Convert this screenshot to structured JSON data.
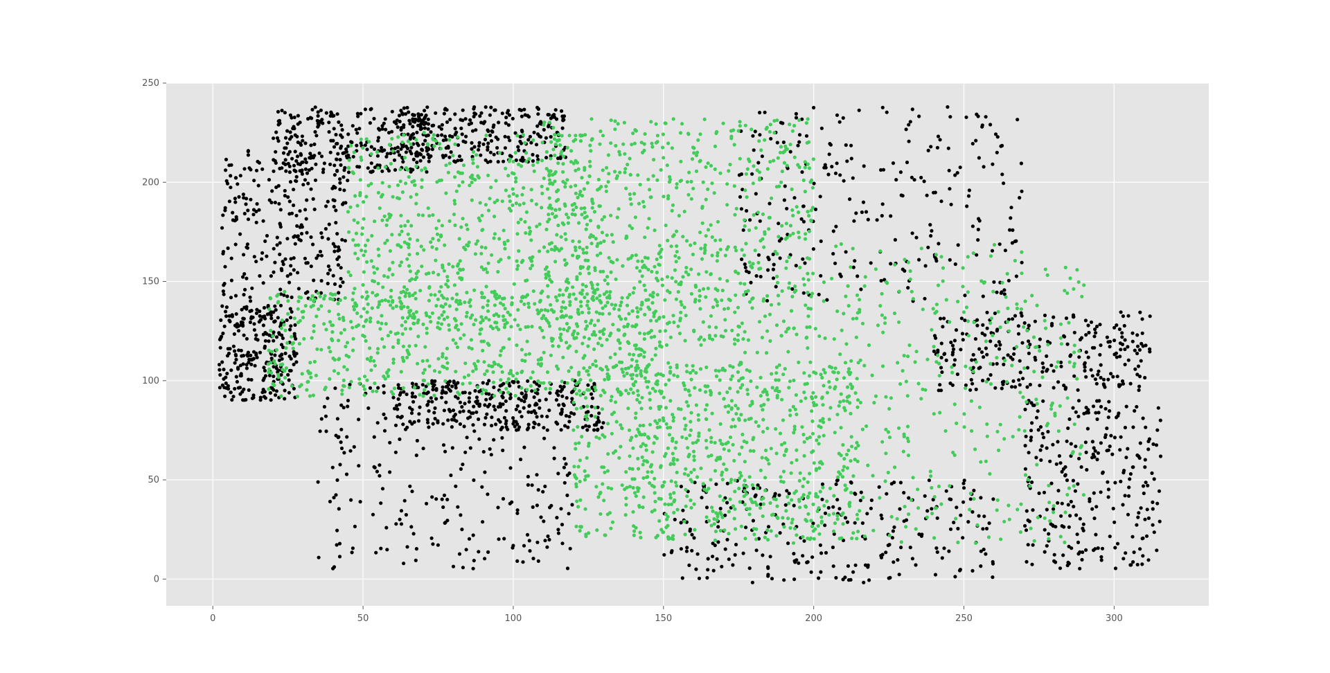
{
  "chart_data": {
    "type": "scatter",
    "title": "",
    "xlabel": "",
    "ylabel": "",
    "xlim": [
      -15.5,
      331.5
    ],
    "ylim": [
      -13.5,
      250
    ],
    "x_ticks": [
      0,
      50,
      100,
      150,
      200,
      250,
      300
    ],
    "y_ticks": [
      0,
      50,
      100,
      150,
      200,
      250
    ],
    "x_tick_labels": [
      "0",
      "50",
      "100",
      "150",
      "200",
      "250",
      "300"
    ],
    "y_tick_labels": [
      "0",
      "50",
      "100",
      "150",
      "200",
      "250"
    ],
    "grid": true,
    "legend": "none",
    "style": "ggplot",
    "background_color": "#e5e5e5",
    "grid_color": "#ffffff",
    "series": [
      {
        "color": "#000000",
        "description_regions": "black outer trajectory clusters",
        "clusters": [
          {
            "x": [
              2,
              28
            ],
            "y": [
              90,
              138
            ]
          },
          {
            "x": [
              3,
              45
            ],
            "y": [
              140,
              218
            ]
          },
          {
            "x": [
              20,
              72
            ],
            "y": [
              205,
              238
            ]
          },
          {
            "x": [
              62,
              118
            ],
            "y": [
              210,
              238
            ]
          },
          {
            "x": [
              35,
              120
            ],
            "y": [
              5,
              100
            ]
          },
          {
            "x": [
              60,
              130
            ],
            "y": [
              75,
              100
            ]
          },
          {
            "x": [
              150,
              260
            ],
            "y": [
              -2,
              50
            ]
          },
          {
            "x": [
              175,
              270
            ],
            "y": [
              140,
              238
            ]
          },
          {
            "x": [
              240,
              312
            ],
            "y": [
              95,
              135
            ]
          },
          {
            "x": [
              270,
              316
            ],
            "y": [
              5,
              90
            ]
          }
        ]
      },
      {
        "color": "#44cc5a",
        "description_regions": "green central trajectory band",
        "clusters": [
          {
            "x": [
              18,
              150
            ],
            "y": [
              92,
              145
            ]
          },
          {
            "x": [
              45,
              130
            ],
            "y": [
              125,
              225
            ]
          },
          {
            "x": [
              110,
              200
            ],
            "y": [
              120,
              232
            ]
          },
          {
            "x": [
              140,
              290
            ],
            "y": [
              18,
              170
            ]
          },
          {
            "x": [
              120,
              215
            ],
            "y": [
              20,
              110
            ]
          }
        ]
      }
    ]
  }
}
